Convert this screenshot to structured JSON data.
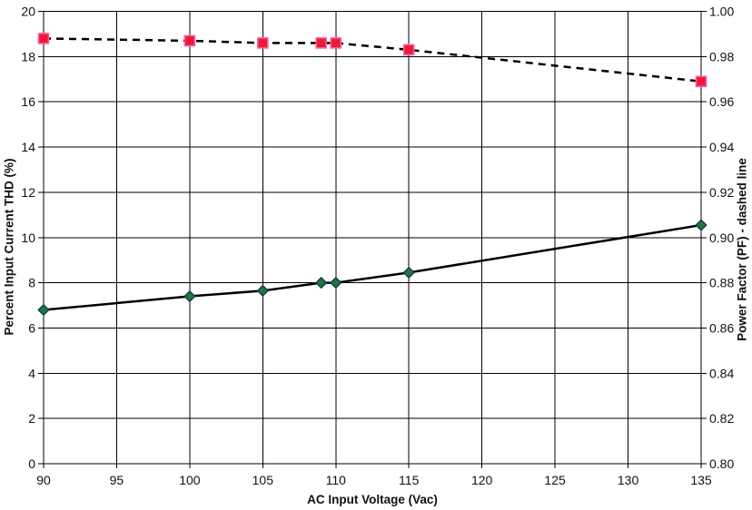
{
  "chart_data": {
    "type": "line",
    "title": "",
    "xlabel": "AC Input Voltage (Vac)",
    "ylabel_left": "Percent Input Current THD (%)",
    "ylabel_right": "Power Factor (PF) - dashed line",
    "xlim": [
      90,
      135
    ],
    "x_ticks": [
      90,
      95,
      100,
      105,
      110,
      115,
      120,
      125,
      130,
      135
    ],
    "ylim_left": [
      0,
      20
    ],
    "y_ticks_left": [
      0,
      2,
      4,
      6,
      8,
      10,
      12,
      14,
      16,
      18,
      20
    ],
    "ylim_right": [
      0.8,
      1.0
    ],
    "y_ticks_right": [
      "0.80",
      "0.82",
      "0.84",
      "0.86",
      "0.88",
      "0.90",
      "0.92",
      "0.94",
      "0.96",
      "0.98",
      "1.00"
    ],
    "grid": true,
    "legend": "none",
    "background_color": "#ffffff",
    "grid_color": "#000000",
    "series": [
      {
        "name": "Percent Input Current THD",
        "axis": "left",
        "line_style": "solid",
        "line_color": "#000000",
        "marker": "diamond",
        "marker_fill": "#1f7a33",
        "marker_stroke": "#16365d",
        "x": [
          90,
          100,
          105,
          109,
          110,
          115,
          135
        ],
        "y": [
          6.8,
          7.4,
          7.65,
          8.0,
          8.0,
          8.45,
          10.55
        ]
      },
      {
        "name": "Power Factor (PF)",
        "axis": "right",
        "line_style": "dashed",
        "line_color": "#000000",
        "marker": "square",
        "marker_fill": "#ee1a33",
        "marker_stroke": "#f75fa8",
        "x": [
          90,
          100,
          105,
          109,
          110,
          115,
          135
        ],
        "y": [
          0.988,
          0.987,
          0.986,
          0.986,
          0.986,
          0.983,
          0.969
        ]
      }
    ]
  }
}
